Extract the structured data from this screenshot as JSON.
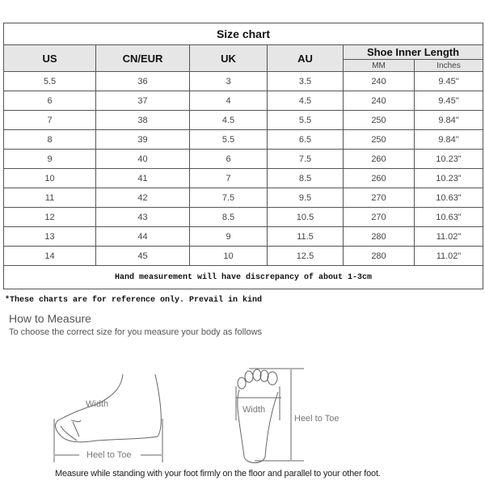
{
  "title": "Size chart",
  "headers": {
    "us": "US",
    "cn_eur": "CN/EUR",
    "uk": "UK",
    "au": "AU",
    "length": "Shoe Inner Length",
    "mm": "MM",
    "inches": "Inches"
  },
  "rows": [
    [
      "5.5",
      "36",
      "3",
      "3.5",
      "240",
      "9.45\""
    ],
    [
      "6",
      "37",
      "4",
      "4.5",
      "240",
      "9.45\""
    ],
    [
      "7",
      "38",
      "4.5",
      "5.5",
      "250",
      "9.84\""
    ],
    [
      "8",
      "39",
      "5.5",
      "6.5",
      "250",
      "9.84\""
    ],
    [
      "9",
      "40",
      "6",
      "7.5",
      "260",
      "10.23\""
    ],
    [
      "10",
      "41",
      "7",
      "8.5",
      "260",
      "10.23\""
    ],
    [
      "11",
      "42",
      "7.5",
      "9.5",
      "270",
      "10.63\""
    ],
    [
      "12",
      "43",
      "8.5",
      "10.5",
      "270",
      "10.63\""
    ],
    [
      "13",
      "44",
      "9",
      "11.5",
      "280",
      "11.02\""
    ],
    [
      "14",
      "45",
      "10",
      "12.5",
      "280",
      "11.02\""
    ]
  ],
  "footer": "Hand measurement will have discrepancy of about 1-3cm",
  "note": "*These charts are for reference only. Prevail in kind",
  "measure": {
    "heading": "How to Measure",
    "subheading": "To choose the correct size for you measure your body as follows",
    "width_label": "Width",
    "heel_to_toe_label": "Heel to Toe",
    "caption": "Measure while standing with your foot firmly on the floor and parallel to your other foot."
  }
}
